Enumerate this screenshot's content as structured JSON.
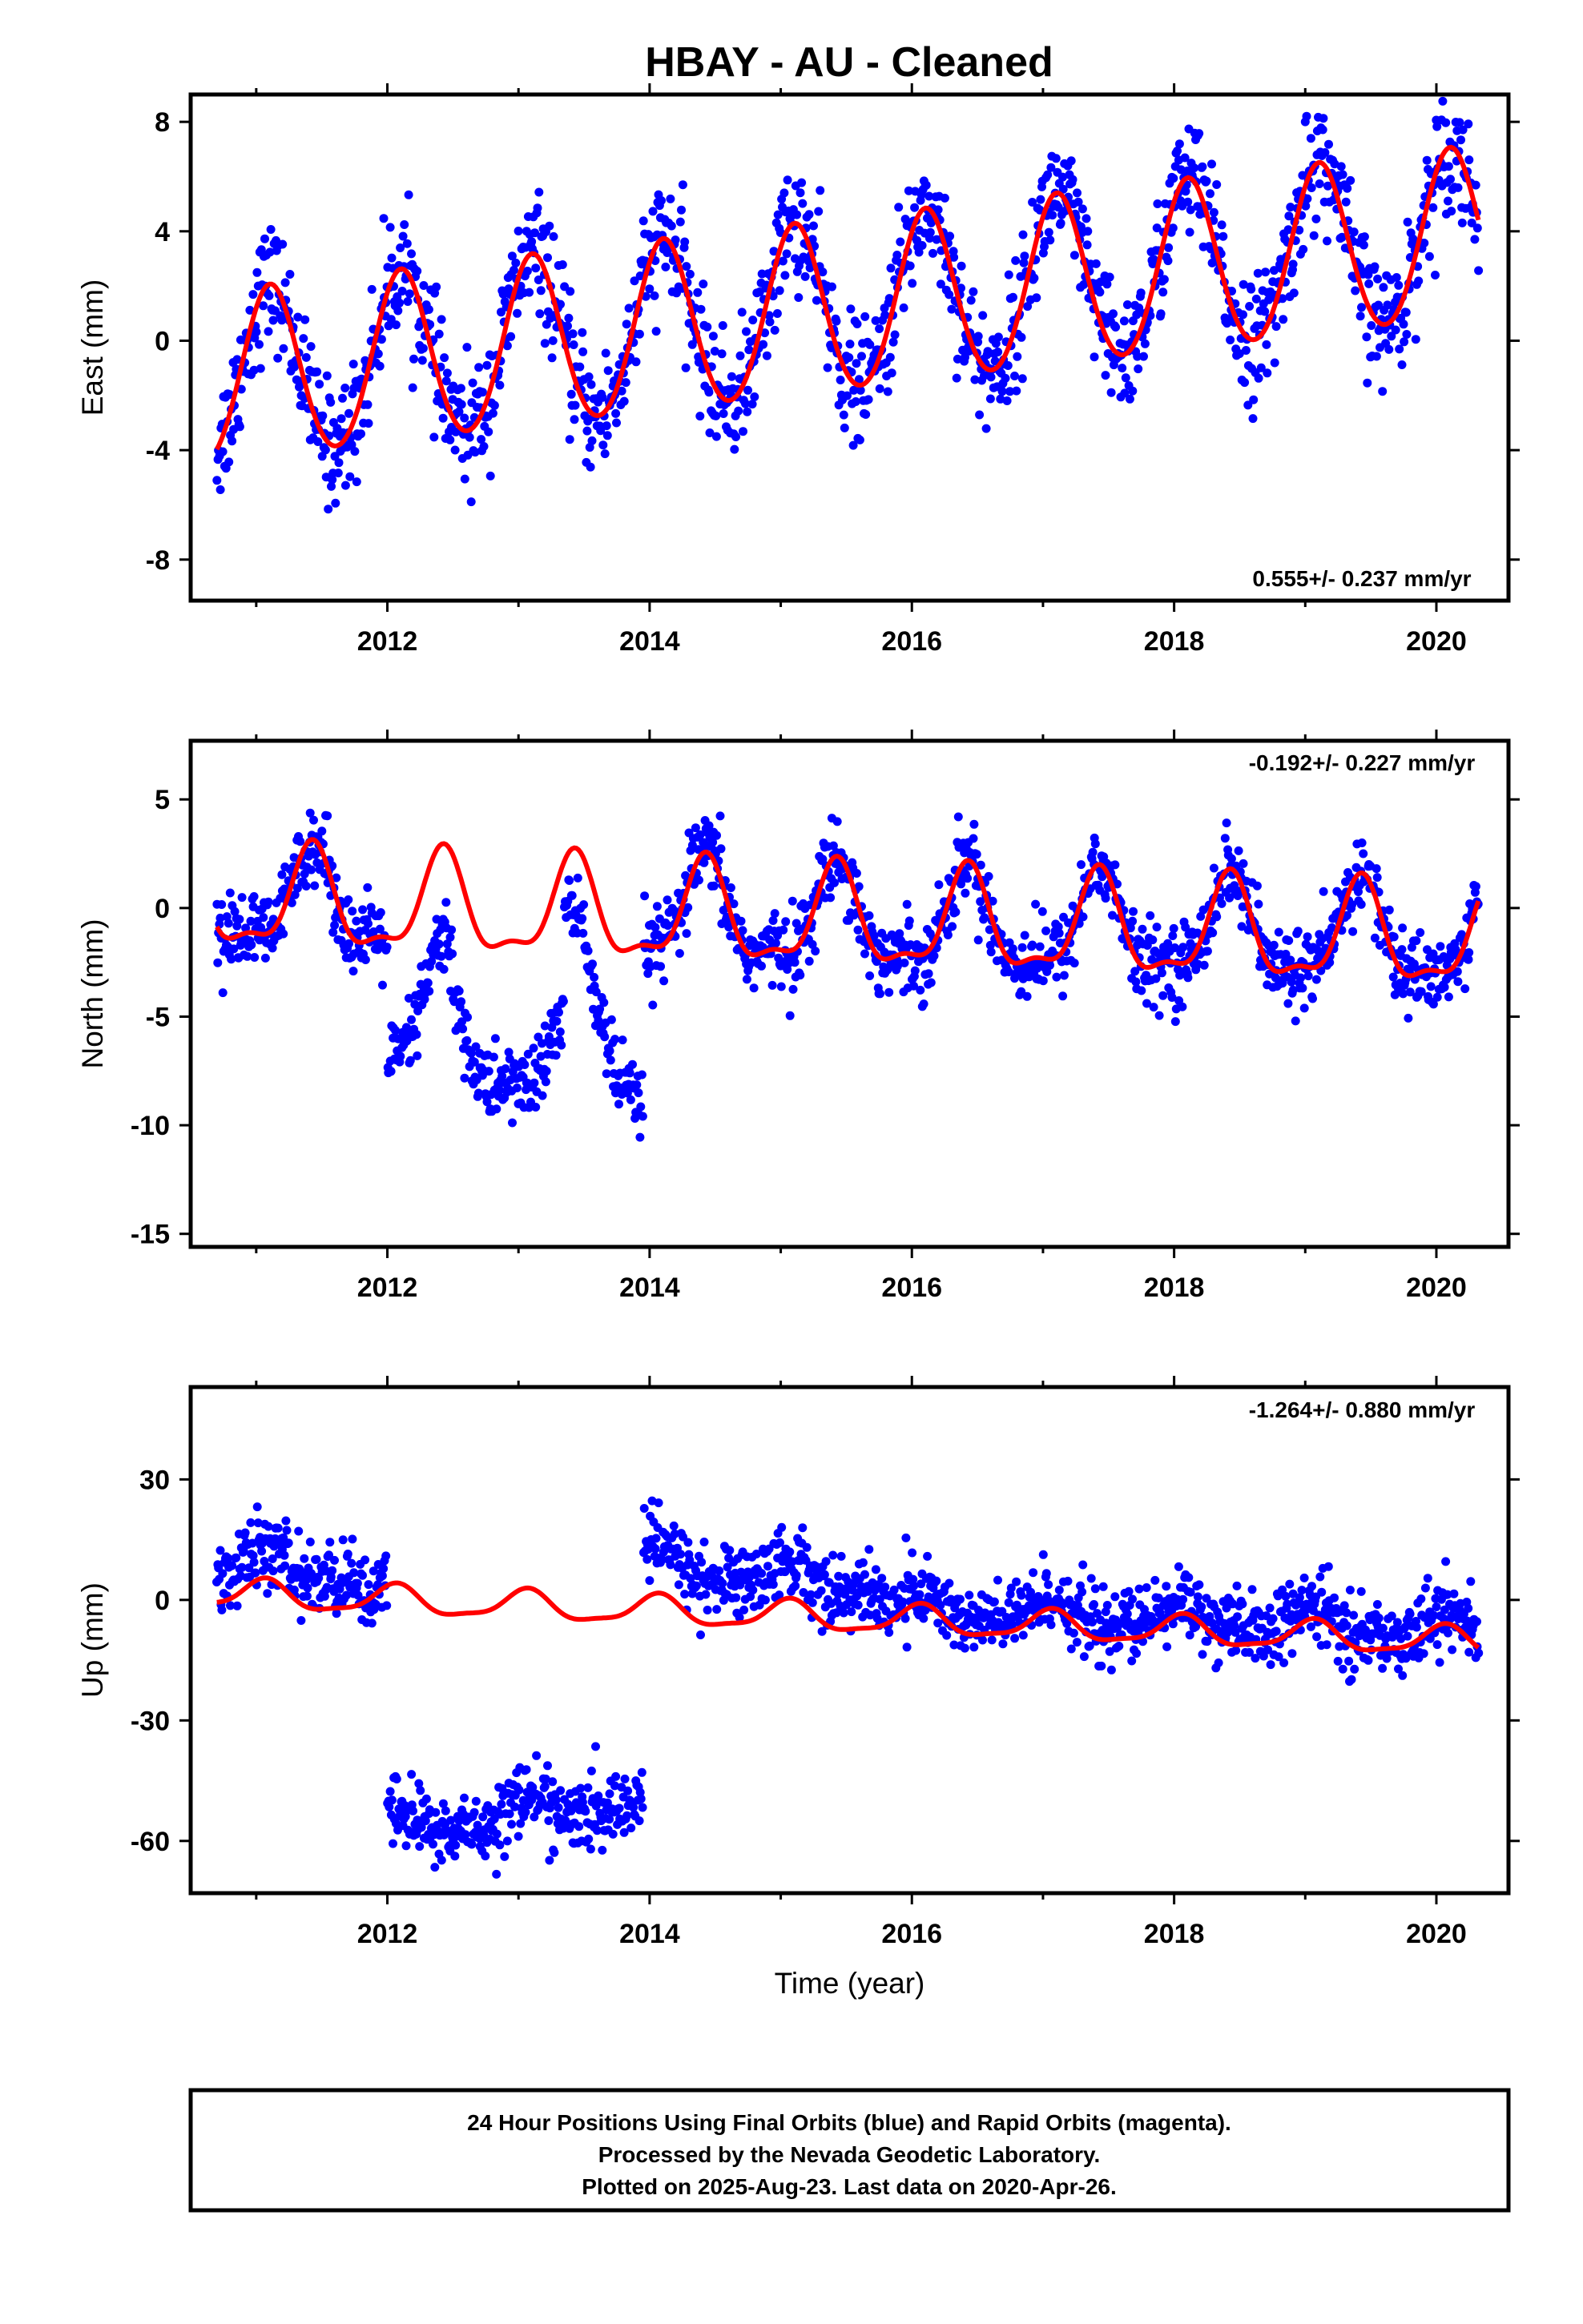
{
  "figure": {
    "title": "HBAY  - AU - Cleaned",
    "footer": [
      "24 Hour Positions Using Final Orbits (blue) and Rapid Orbits (magenta).",
      "Processed by the Nevada Geodetic Laboratory.",
      "Plotted on 2025-Aug-23. Last data on 2020-Apr-26."
    ],
    "colors": {
      "points": "#0000ff",
      "model": "#ff0000",
      "frame": "#000000",
      "background": "#ffffff"
    }
  },
  "chart_data": [
    {
      "type": "scatter",
      "component": "East",
      "ylabel": "East (mm)",
      "xlabel": "",
      "xlim": [
        2010.5,
        2020.55
      ],
      "ylim": [
        -9.5,
        9.0
      ],
      "xticks": [
        2012,
        2014,
        2016,
        2018,
        2020
      ],
      "xtick_labels": [
        "2012",
        "2014",
        "2016",
        "2018",
        "2020"
      ],
      "yticks": [
        -8,
        -4,
        0,
        4,
        8
      ],
      "ytick_labels": [
        "-8",
        "-4",
        "0",
        "4",
        "8"
      ],
      "rate_label": "0.555+/- 0.237 mm/yr",
      "data_range": [
        2010.7,
        2020.32
      ],
      "model": {
        "offset": -1.45,
        "trend": 0.555,
        "t0": 2010.7,
        "annual_amp": 3.1,
        "annual_phase": 0.9,
        "semiannual_amp": 0.2,
        "semiannual_phase": 0.3,
        "steps": []
      },
      "scatter": {
        "noise_sd": 1.1,
        "extra": []
      }
    },
    {
      "type": "scatter",
      "component": "North",
      "ylabel": "North (mm)",
      "xlabel": "",
      "xlim": [
        2010.5,
        2020.55
      ],
      "ylim": [
        -15.6,
        7.7
      ],
      "xticks": [
        2012,
        2014,
        2016,
        2018,
        2020
      ],
      "xtick_labels": [
        "2012",
        "2014",
        "2016",
        "2018",
        "2020"
      ],
      "yticks": [
        -15,
        -10,
        -5,
        0,
        5
      ],
      "ytick_labels": [
        "-15",
        "-10",
        "-5",
        "0",
        "5"
      ],
      "rate_label": "-0.192+/- 0.227 mm/yr",
      "data_range": [
        2010.7,
        2020.32
      ],
      "model": {
        "offset": 0.3,
        "trend": -0.192,
        "t0": 2010.7,
        "annual_amp": 2.2,
        "annual_phase": 5.2,
        "semiannual_amp": 0.8,
        "semiannual_phase": 2.4,
        "steps": []
      },
      "scatter": {
        "noise_sd": 0.9,
        "extra": [
          {
            "range": [
              2012.0,
              2012.5
            ],
            "shift": -5.0,
            "slope": 3.0
          },
          {
            "range": [
              2012.5,
              2013.35
            ],
            "shift": -6.5,
            "slope": 0
          },
          {
            "range": [
              2013.35,
              2013.95
            ],
            "shift": -5.0,
            "slope": -9.0
          }
        ]
      }
    },
    {
      "type": "scatter",
      "component": "Up",
      "ylabel": "Up (mm)",
      "xlabel": "Time (year)",
      "xlim": [
        2010.5,
        2020.55
      ],
      "ylim": [
        -73,
        53
      ],
      "xticks": [
        2012,
        2014,
        2016,
        2018,
        2020
      ],
      "xtick_labels": [
        "2012",
        "2014",
        "2016",
        "2018",
        "2020"
      ],
      "yticks": [
        -60,
        -30,
        0,
        30
      ],
      "ytick_labels": [
        "-60",
        "-30",
        "0",
        "30"
      ],
      "rate_label": "-1.264+/- 0.880 mm/yr",
      "data_range": [
        2010.7,
        2020.32
      ],
      "model": {
        "offset": 1.5,
        "trend": -1.264,
        "t0": 2010.7,
        "annual_amp": 3.5,
        "annual_phase": 1.2,
        "semiannual_amp": 1.0,
        "semiannual_phase": 0.5,
        "steps": []
      },
      "scatter": {
        "noise_sd": 4.5,
        "extra": [
          {
            "range": [
              2010.7,
              2011.8
            ],
            "shift": 7.0,
            "slope": 0
          },
          {
            "range": [
              2012.0,
              2013.95
            ],
            "shift": -52.0,
            "slope": 5.0
          },
          {
            "range": [
              2013.95,
              2015.8
            ],
            "shift": 10.0,
            "slope": -2.0
          },
          {
            "range": [
              2015.8,
              2020.32
            ],
            "shift": 3.0,
            "slope": 0
          }
        ]
      }
    }
  ]
}
